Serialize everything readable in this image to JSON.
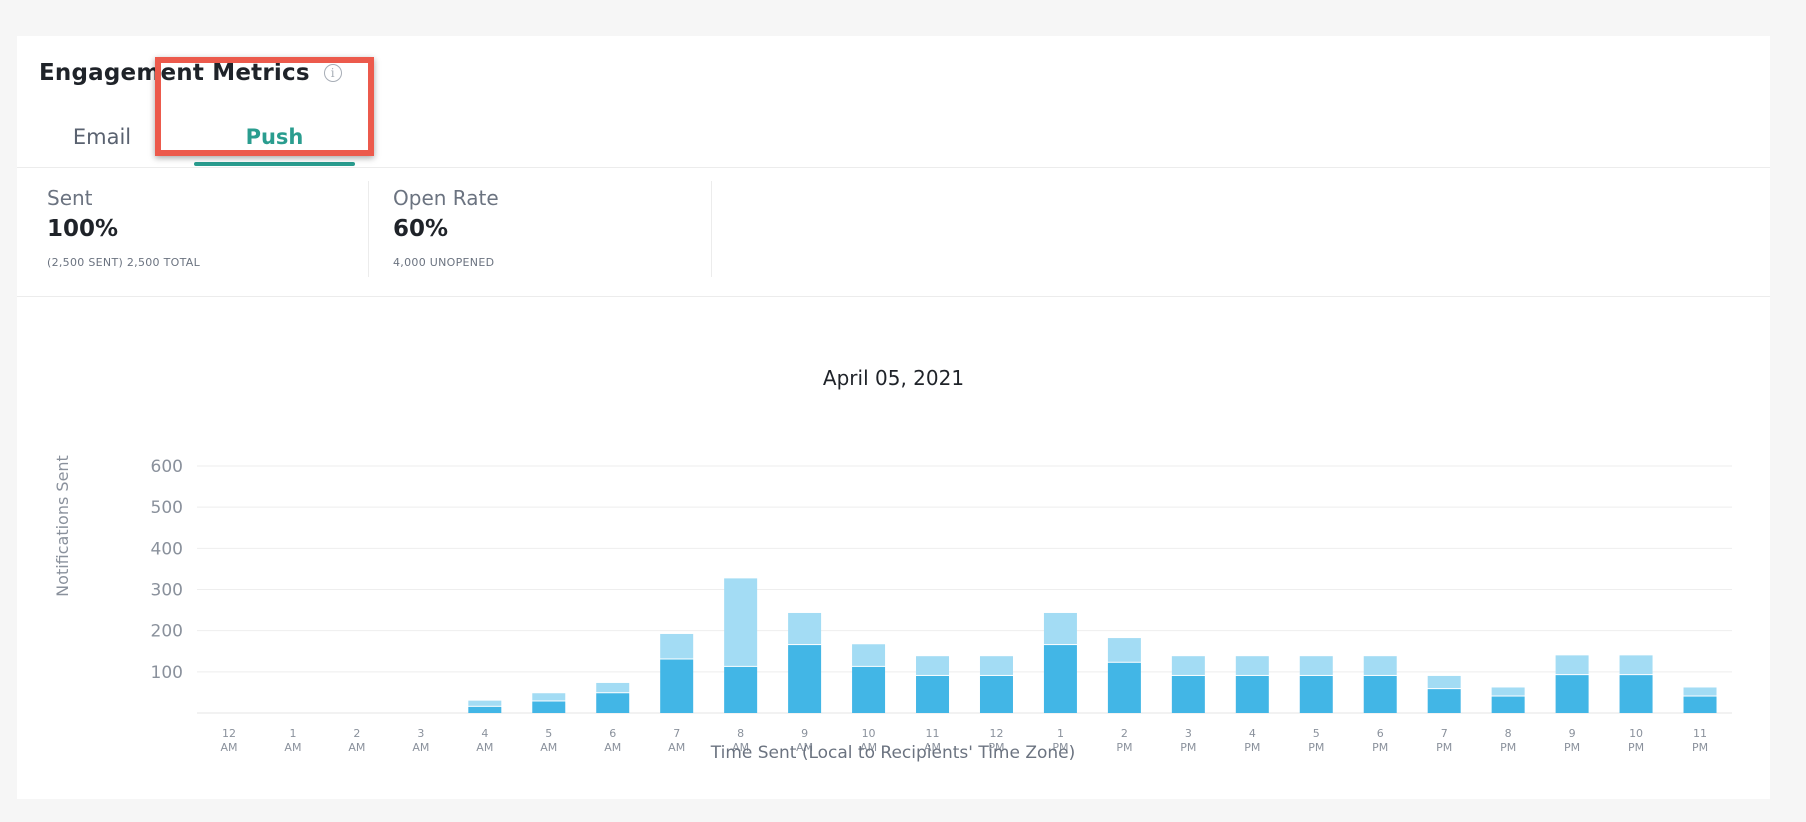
{
  "header": {
    "title": "Engagement Metrics",
    "info_icon": "info-icon"
  },
  "tabs": [
    {
      "label": "Email",
      "active": false
    },
    {
      "label": "Push",
      "active": true
    }
  ],
  "metrics": [
    {
      "label": "Sent",
      "value": "100%",
      "sub": "(2,500 SENT) 2,500 TOTAL"
    },
    {
      "label": "Open Rate",
      "value": "60%",
      "sub": "4,000 UNOPENED"
    }
  ],
  "colors": {
    "accent": "#2a9d8f",
    "bar_dark": "#42b6e6",
    "bar_light": "#a3dcf4",
    "highlight": "#ec5a4c"
  },
  "chart_data": {
    "type": "bar",
    "stacked": true,
    "title": "April 05, 2021",
    "xlabel": "Time Sent (Local to Recipients' Time Zone)",
    "ylabel": "Notifications Sent",
    "ylim": [
      0,
      600
    ],
    "yticks": [
      100,
      200,
      300,
      400,
      500,
      600
    ],
    "grid": true,
    "categories": [
      [
        "12",
        "AM"
      ],
      [
        "1",
        "AM"
      ],
      [
        "2",
        "AM"
      ],
      [
        "3",
        "AM"
      ],
      [
        "4",
        "AM"
      ],
      [
        "5",
        "AM"
      ],
      [
        "6",
        "AM"
      ],
      [
        "7",
        "AM"
      ],
      [
        "8",
        "AM"
      ],
      [
        "9",
        "AM"
      ],
      [
        "10",
        "AM"
      ],
      [
        "11",
        "AM"
      ],
      [
        "12",
        "PM"
      ],
      [
        "1",
        "PM"
      ],
      [
        "2",
        "PM"
      ],
      [
        "3",
        "PM"
      ],
      [
        "4",
        "PM"
      ],
      [
        "5",
        "PM"
      ],
      [
        "6",
        "PM"
      ],
      [
        "7",
        "PM"
      ],
      [
        "8",
        "PM"
      ],
      [
        "9",
        "PM"
      ],
      [
        "10",
        "PM"
      ],
      [
        "11",
        "PM"
      ]
    ],
    "series": [
      {
        "values": [
          0,
          0,
          0,
          0,
          15,
          28,
          48,
          130,
          112,
          165,
          112,
          90,
          90,
          165,
          122,
          90,
          90,
          90,
          90,
          58,
          40,
          92,
          92,
          40
        ]
      },
      {
        "values": [
          0,
          0,
          0,
          0,
          15,
          20,
          25,
          62,
          215,
          78,
          55,
          48,
          48,
          78,
          60,
          48,
          48,
          48,
          48,
          32,
          22,
          48,
          48,
          22
        ]
      }
    ]
  }
}
